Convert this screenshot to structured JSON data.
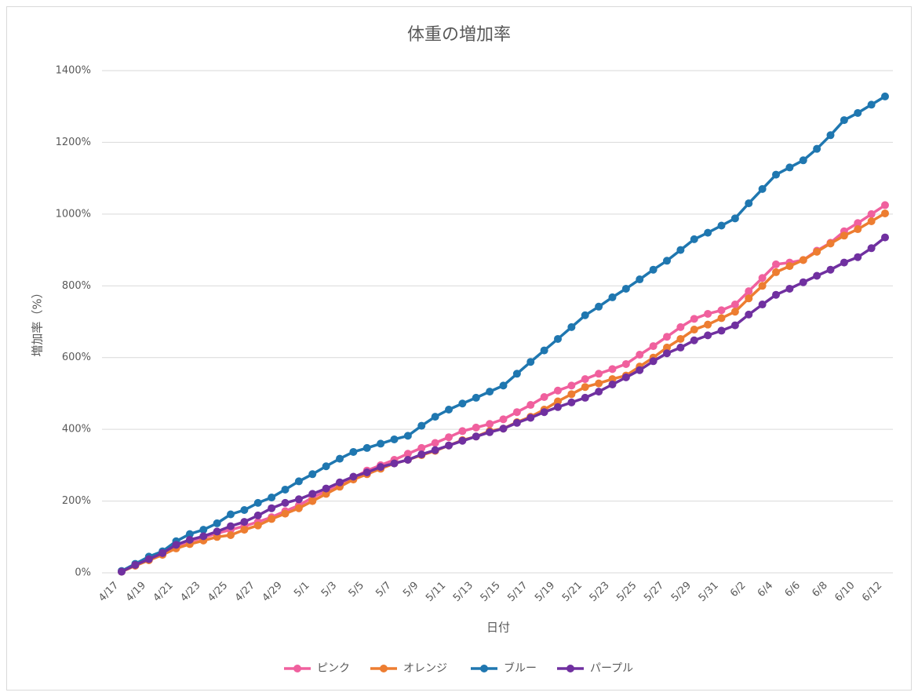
{
  "chart_data": {
    "type": "line",
    "title": "体重の増加率",
    "x_label": "日付",
    "y_label": "増加率（%）",
    "categories": [
      "4/17",
      null,
      "4/19",
      null,
      "4/21",
      null,
      "4/23",
      null,
      "4/25",
      null,
      "4/27",
      null,
      "4/29",
      null,
      "5/1",
      null,
      "5/3",
      null,
      "5/5",
      null,
      "5/7",
      null,
      "5/9",
      null,
      "5/11",
      null,
      "5/13",
      null,
      "5/15",
      null,
      "5/17",
      null,
      "5/19",
      null,
      "5/21",
      null,
      "5/23",
      null,
      "5/25",
      null,
      "5/27",
      null,
      "5/29",
      null,
      "5/31",
      null,
      "6/2",
      null,
      "6/4",
      null,
      "6/6",
      null,
      "6/8",
      null,
      "6/10",
      null,
      "6/12"
    ],
    "series": [
      {
        "name": "ピンク",
        "color": "#f0609e",
        "values": [
          5,
          20,
          38,
          55,
          75,
          88,
          98,
          110,
          120,
          130,
          142,
          155,
          172,
          188,
          210,
          228,
          248,
          265,
          285,
          300,
          315,
          332,
          348,
          362,
          378,
          395,
          405,
          415,
          428,
          448,
          468,
          490,
          508,
          522,
          540,
          555,
          568,
          582,
          608,
          632,
          658,
          685,
          708,
          722,
          732,
          748,
          785,
          822,
          860,
          865,
          872,
          898,
          920,
          952,
          975,
          1000,
          1025
        ]
      },
      {
        "name": "オレンジ",
        "color": "#ed7d31",
        "values": [
          3,
          20,
          35,
          50,
          68,
          80,
          90,
          100,
          105,
          120,
          132,
          150,
          165,
          180,
          200,
          220,
          240,
          260,
          275,
          290,
          305,
          315,
          328,
          340,
          355,
          370,
          380,
          395,
          402,
          420,
          435,
          455,
          478,
          498,
          518,
          528,
          540,
          550,
          575,
          600,
          628,
          652,
          678,
          692,
          710,
          728,
          765,
          800,
          838,
          855,
          872,
          895,
          918,
          940,
          958,
          980,
          1002
        ]
      },
      {
        "name": "ブルー",
        "color": "#1f77b0",
        "values": [
          5,
          25,
          45,
          60,
          88,
          108,
          120,
          138,
          163,
          175,
          195,
          210,
          232,
          255,
          275,
          297,
          318,
          337,
          348,
          360,
          372,
          382,
          410,
          435,
          455,
          472,
          488,
          505,
          522,
          555,
          588,
          620,
          652,
          685,
          718,
          742,
          768,
          792,
          818,
          845,
          870,
          900,
          930,
          948,
          968,
          988,
          1030,
          1070,
          1110,
          1130,
          1150,
          1182,
          1220,
          1262,
          1282,
          1305,
          1328
        ]
      },
      {
        "name": "パープル",
        "color": "#7030a0",
        "values": [
          3,
          22,
          38,
          55,
          78,
          92,
          102,
          115,
          130,
          142,
          160,
          180,
          195,
          205,
          220,
          235,
          252,
          268,
          280,
          295,
          305,
          315,
          330,
          342,
          355,
          368,
          380,
          392,
          402,
          418,
          432,
          448,
          462,
          475,
          488,
          505,
          525,
          545,
          565,
          590,
          612,
          628,
          648,
          662,
          675,
          690,
          720,
          748,
          775,
          792,
          810,
          828,
          845,
          865,
          880,
          905,
          935
        ]
      }
    ],
    "ylim": [
      0,
      1400
    ],
    "yticks": [
      {
        "value": 0,
        "label": "0%"
      },
      {
        "value": 200,
        "label": "200%"
      },
      {
        "value": 400,
        "label": "400%"
      },
      {
        "value": 600,
        "label": "600%"
      },
      {
        "value": 800,
        "label": "800%"
      },
      {
        "value": 1000,
        "label": "1000%"
      },
      {
        "value": 1200,
        "label": "1200%"
      },
      {
        "value": 1400,
        "label": "1400%"
      }
    ],
    "grid": true,
    "legend": "bottom"
  }
}
